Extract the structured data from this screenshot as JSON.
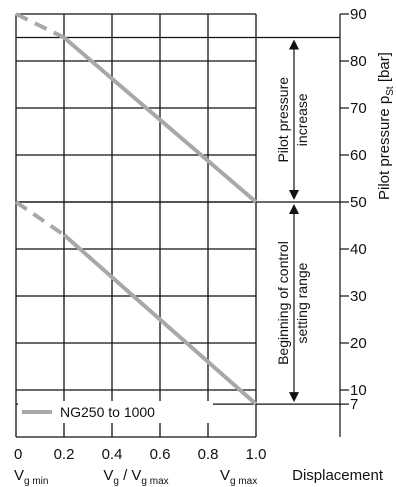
{
  "chart_data": {
    "type": "line",
    "series": [
      {
        "name": "NG250 to 1000",
        "color": "#a8a8a8",
        "segments": [
          {
            "style": "solid",
            "x": [
              0.2,
              1.0
            ],
            "y": [
              85,
              50
            ]
          },
          {
            "style": "dashed",
            "x": [
              0.0,
              0.2
            ],
            "y": [
              90,
              85
            ]
          },
          {
            "style": "solid",
            "x": [
              0.2,
              1.0
            ],
            "y": [
              43,
              7
            ]
          },
          {
            "style": "dashed",
            "x": [
              0.0,
              0.2
            ],
            "y": [
              50,
              43
            ]
          }
        ]
      }
    ],
    "x_ticks": [
      "0",
      "0.2",
      "0.4",
      "0.6",
      "0.8",
      "1.0"
    ],
    "x_tick_values": [
      0,
      0.2,
      0.4,
      0.6,
      0.8,
      1.0
    ],
    "xlim": [
      0,
      1.0
    ],
    "x_sublabels": {
      "min": {
        "main": "V",
        "sub": "g min"
      },
      "middle": {
        "main1": "V",
        "sub1": "g",
        "slash": " / V",
        "sub2": "g max"
      },
      "max": {
        "main": "V",
        "sub": "g max"
      }
    },
    "xlabel": "Displacement",
    "y_ticks": [
      "90",
      "80",
      "70",
      "60",
      "50",
      "40",
      "30",
      "20",
      "10",
      "7"
    ],
    "y_tick_values": [
      90,
      80,
      70,
      60,
      50,
      40,
      30,
      20,
      10,
      7
    ],
    "ylim": [
      0,
      90
    ],
    "ylabel": {
      "main": "Pilot pressure p",
      "sub": "St",
      "unit": " [bar]"
    },
    "grid": true,
    "legend": {
      "position": "bottom-left",
      "entries": [
        "NG250 to 1000"
      ]
    },
    "annotations": [
      {
        "lines": [
          "Pilot pressure",
          "increase"
        ],
        "from": 85,
        "to": 50
      },
      {
        "lines": [
          "Beginning of control",
          "setting range"
        ],
        "from": 50,
        "to": 7
      }
    ],
    "reference_lines": [
      85,
      50,
      7
    ]
  }
}
